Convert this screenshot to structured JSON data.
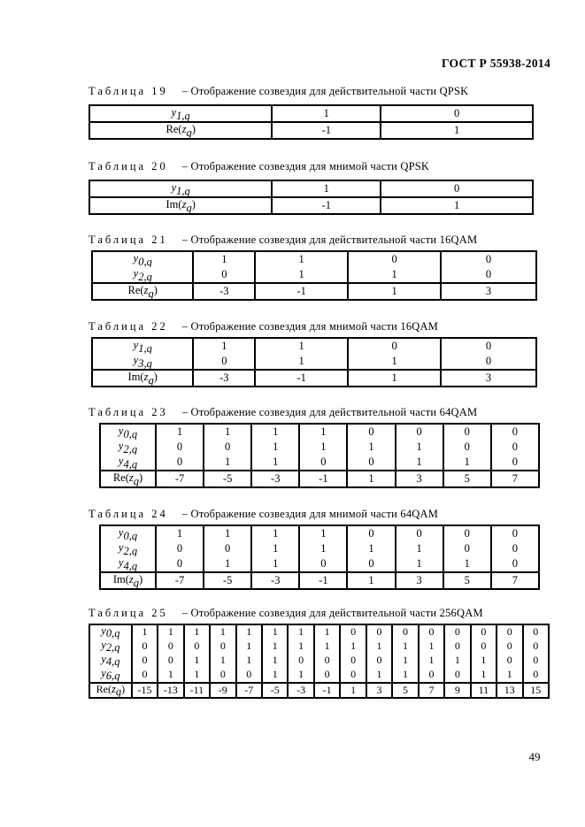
{
  "page": {
    "header": "ГОСТ Р 55938-2014",
    "page_number": "49"
  },
  "tables": [
    {
      "number": "19",
      "caption_label": "Таблица 19",
      "caption_text": "– Отображение созвездия для действительной части QPSK",
      "bit_rows": [
        {
          "base": "y",
          "sub": "1,q",
          "values": [
            "1",
            "0"
          ]
        }
      ],
      "result_row": {
        "fn": "Re",
        "base": "z",
        "sub": "q",
        "values": [
          "-1",
          "1"
        ]
      }
    },
    {
      "number": "20",
      "caption_label": "Таблица 20",
      "caption_text": "– Отображение созвездия для мнимой части QPSK",
      "bit_rows": [
        {
          "base": "y",
          "sub": "1,q",
          "values": [
            "1",
            "0"
          ]
        }
      ],
      "result_row": {
        "fn": "Im",
        "base": "z",
        "sub": "q",
        "values": [
          "-1",
          "1"
        ]
      }
    },
    {
      "number": "21",
      "caption_label": "Таблица 21",
      "caption_text": "– Отображение созвездия для действительной части 16QAM",
      "bit_rows": [
        {
          "base": "y",
          "sub": "0,q",
          "values": [
            "1",
            "1",
            "0",
            "0"
          ]
        },
        {
          "base": "y",
          "sub": "2,q",
          "values": [
            "0",
            "1",
            "1",
            "0"
          ]
        }
      ],
      "result_row": {
        "fn": "Re",
        "base": "z",
        "sub": "q",
        "values": [
          "-3",
          "-1",
          "1",
          "3"
        ]
      }
    },
    {
      "number": "22",
      "caption_label": "Таблица 22",
      "caption_text": "– Отображение созвездия для мнимой части 16QAM",
      "bit_rows": [
        {
          "base": "y",
          "sub": "1,q",
          "values": [
            "1",
            "1",
            "0",
            "0"
          ]
        },
        {
          "base": "y",
          "sub": "3,q",
          "values": [
            "0",
            "1",
            "1",
            "0"
          ]
        }
      ],
      "result_row": {
        "fn": "Im",
        "base": "z",
        "sub": "q",
        "values": [
          "-3",
          "-1",
          "1",
          "3"
        ]
      }
    },
    {
      "number": "23",
      "caption_label": "Таблица 23",
      "caption_text": "– Отображение созвездия для действительной части 64QAM",
      "bit_rows": [
        {
          "base": "y",
          "sub": "0,q",
          "values": [
            "1",
            "1",
            "1",
            "1",
            "0",
            "0",
            "0",
            "0"
          ]
        },
        {
          "base": "y",
          "sub": "2,q",
          "values": [
            "0",
            "0",
            "1",
            "1",
            "1",
            "1",
            "0",
            "0"
          ]
        },
        {
          "base": "y",
          "sub": "4,q",
          "values": [
            "0",
            "1",
            "1",
            "0",
            "0",
            "1",
            "1",
            "0"
          ]
        }
      ],
      "result_row": {
        "fn": "Re",
        "base": "z",
        "sub": "q",
        "values": [
          "-7",
          "-5",
          "-3",
          "-1",
          "1",
          "3",
          "5",
          "7"
        ]
      }
    },
    {
      "number": "24",
      "caption_label": "Таблица 24",
      "caption_text": "– Отображение созвездия для мнимой части 64QAM",
      "bit_rows": [
        {
          "base": "y",
          "sub": "0,q",
          "values": [
            "1",
            "1",
            "1",
            "1",
            "0",
            "0",
            "0",
            "0"
          ]
        },
        {
          "base": "y",
          "sub": "2,q",
          "values": [
            "0",
            "0",
            "1",
            "1",
            "1",
            "1",
            "0",
            "0"
          ]
        },
        {
          "base": "y",
          "sub": "4,q",
          "values": [
            "0",
            "1",
            "1",
            "0",
            "0",
            "1",
            "1",
            "0"
          ]
        }
      ],
      "result_row": {
        "fn": "Im",
        "base": "z",
        "sub": "q",
        "values": [
          "-7",
          "-5",
          "-3",
          "-1",
          "1",
          "3",
          "5",
          "7"
        ]
      }
    },
    {
      "number": "25",
      "caption_label": "Таблица 25",
      "caption_text": "– Отображение созвездия для действительной части 256QAM",
      "bit_rows": [
        {
          "base": "y",
          "sub": "0,q",
          "values": [
            "1",
            "1",
            "1",
            "1",
            "1",
            "1",
            "1",
            "1",
            "0",
            "0",
            "0",
            "0",
            "0",
            "0",
            "0",
            "0"
          ]
        },
        {
          "base": "y",
          "sub": "2,q",
          "values": [
            "0",
            "0",
            "0",
            "0",
            "1",
            "1",
            "1",
            "1",
            "1",
            "1",
            "1",
            "1",
            "0",
            "0",
            "0",
            "0"
          ]
        },
        {
          "base": "y",
          "sub": "4,q",
          "values": [
            "0",
            "0",
            "1",
            "1",
            "1",
            "1",
            "0",
            "0",
            "0",
            "0",
            "1",
            "1",
            "1",
            "1",
            "0",
            "0"
          ]
        },
        {
          "base": "y",
          "sub": "6,q",
          "values": [
            "0",
            "1",
            "1",
            "0",
            "0",
            "1",
            "1",
            "0",
            "0",
            "1",
            "1",
            "0",
            "0",
            "1",
            "1",
            "0"
          ]
        }
      ],
      "result_row": {
        "fn": "Re",
        "base": "z",
        "sub": "q",
        "values": [
          "-15",
          "-13",
          "-11",
          "-9",
          "-7",
          "-5",
          "-3",
          "-1",
          "1",
          "3",
          "5",
          "7",
          "9",
          "11",
          "13",
          "15"
        ]
      }
    }
  ]
}
